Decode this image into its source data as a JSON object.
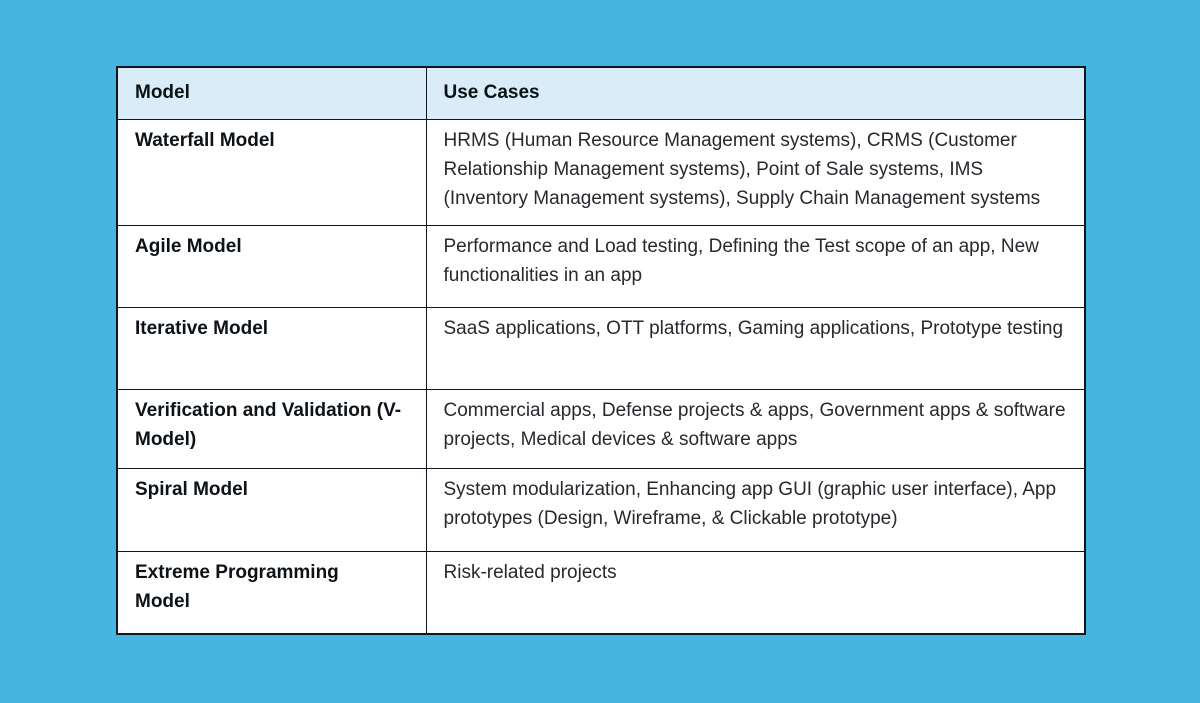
{
  "page": {
    "background_color": "#45b6e2"
  },
  "table": {
    "header": {
      "model": "Model",
      "use_cases": "Use Cases",
      "background_color": "#d9ecf7"
    },
    "border_color": "#10161c",
    "rows": [
      {
        "model": "Waterfall Model",
        "use_cases": "HRMS (Human Resource Management systems), CRMS (Customer Relationship Management systems), Point of Sale systems, IMS (Inventory Management systems), Supply Chain Management systems"
      },
      {
        "model": "Agile Model",
        "use_cases": "Performance and Load testing, Defining the Test scope of an app, New functionalities in an app"
      },
      {
        "model": "Iterative Model",
        "use_cases": "SaaS applications, OTT platforms, Gaming applications, Prototype testing"
      },
      {
        "model": "Verification and Validation (V-Model)",
        "use_cases": "Commercial apps, Defense projects & apps, Government apps & software projects, Medical devices & software apps"
      },
      {
        "model": "Spiral Model",
        "use_cases": "System modularization, Enhancing app GUI (graphic user interface), App prototypes (Design, Wireframe, & Clickable prototype)"
      },
      {
        "model": "Extreme Programming Model",
        "use_cases": "Risk-related projects"
      }
    ]
  }
}
